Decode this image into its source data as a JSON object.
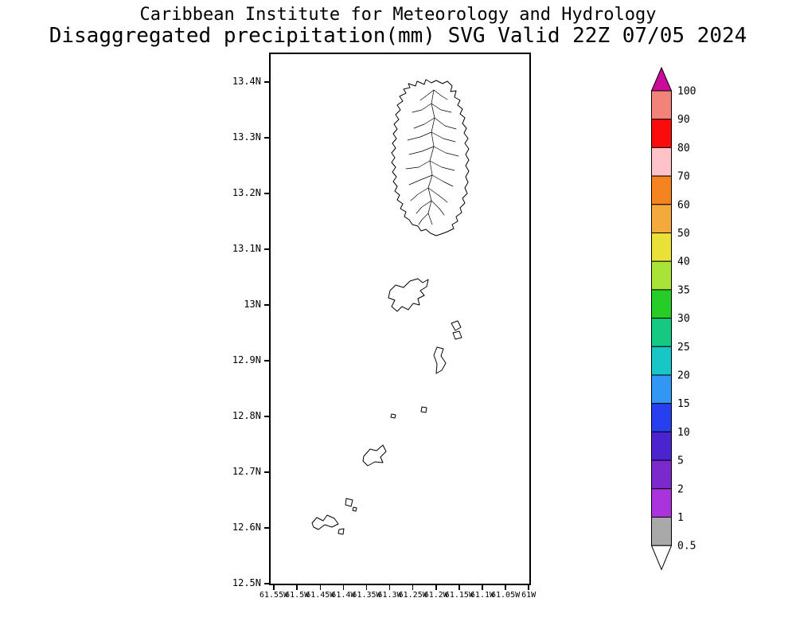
{
  "title": {
    "line1": "Caribbean Institute for Meteorology and Hydrology",
    "line2": "Disaggregated precipitation(mm) SVG Valid 22Z 07/05 2024"
  },
  "map": {
    "lat_ticks": [
      {
        "label": "13.4N",
        "value": 13.4
      },
      {
        "label": "13.3N",
        "value": 13.3
      },
      {
        "label": "13.2N",
        "value": 13.2
      },
      {
        "label": "13.1N",
        "value": 13.1
      },
      {
        "label": "13N",
        "value": 13.0
      },
      {
        "label": "12.9N",
        "value": 12.9
      },
      {
        "label": "12.8N",
        "value": 12.8
      },
      {
        "label": "12.7N",
        "value": 12.7
      },
      {
        "label": "12.6N",
        "value": 12.6
      },
      {
        "label": "12.5N",
        "value": 12.5
      }
    ],
    "lon_ticks": [
      {
        "label": "61.55W",
        "value": 61.55
      },
      {
        "label": "61.5W",
        "value": 61.5
      },
      {
        "label": "61.45W",
        "value": 61.45
      },
      {
        "label": "61.4W",
        "value": 61.4
      },
      {
        "label": "61.35W",
        "value": 61.35
      },
      {
        "label": "61.3W",
        "value": 61.3
      },
      {
        "label": "61.25W",
        "value": 61.25
      },
      {
        "label": "61.2W",
        "value": 61.2
      },
      {
        "label": "61.15W",
        "value": 61.15
      },
      {
        "label": "61.1W",
        "value": 61.1
      },
      {
        "label": "61.05W",
        "value": 61.05
      },
      {
        "label": "61W",
        "value": 61.0
      }
    ]
  },
  "colorbar": {
    "labels": [
      "100",
      "90",
      "80",
      "70",
      "60",
      "50",
      "40",
      "35",
      "30",
      "25",
      "20",
      "15",
      "10",
      "5",
      "2",
      "1",
      "0.5"
    ],
    "band_colors": [
      "#f2837b",
      "#fb0c0c",
      "#ffc2c8",
      "#f5831f",
      "#f3a93c",
      "#e9e138",
      "#a9e337",
      "#27cd27",
      "#16c983",
      "#18c6c6",
      "#3296f5",
      "#283ff0",
      "#4b24cf",
      "#7b28cd",
      "#ab33dd",
      "#a9a9a9"
    ],
    "top_color": "#cb0c9b",
    "bottom_color": "#ffffff"
  }
}
